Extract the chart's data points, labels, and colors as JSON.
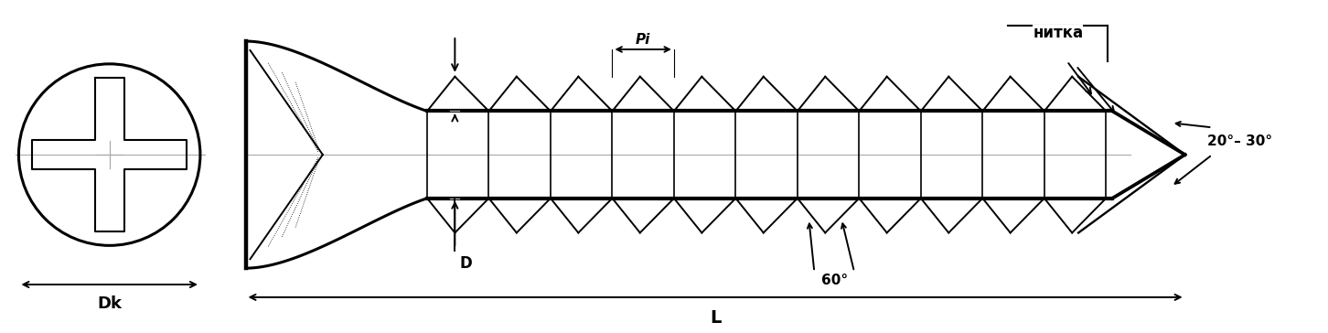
{
  "bg_color": "#ffffff",
  "line_color": "#000000",
  "gray_color": "#aaaaaa",
  "lw_main": 2.2,
  "lw_thin": 1.2,
  "lw_dim": 1.4,
  "fig_w": 14.52,
  "fig_h": 3.64,
  "labels": {
    "Dk": "Dk",
    "L": "L",
    "D": "D",
    "Pi": "Pi",
    "angle1": "20°– 30°",
    "angle2": "60°",
    "nitka": "нитка"
  }
}
